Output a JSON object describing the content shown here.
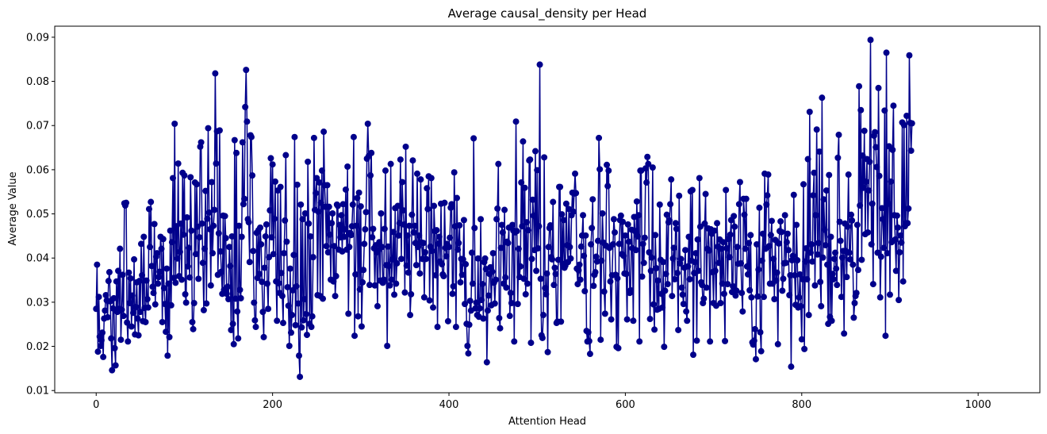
{
  "chart_data": {
    "type": "line",
    "title": "Average causal_density per Head",
    "xlabel": "Attention Head",
    "ylabel": "Average Value",
    "xlim": [
      -47,
      1070
    ],
    "ylim": [
      0.0095,
      0.0925
    ],
    "xticks": [
      0,
      200,
      400,
      600,
      800,
      1000
    ],
    "xtick_labels": [
      "0",
      "200",
      "400",
      "600",
      "800",
      "1000"
    ],
    "yticks": [
      0.01,
      0.02,
      0.03,
      0.04,
      0.05,
      0.06,
      0.07,
      0.08,
      0.09
    ],
    "ytick_labels": [
      "0.01",
      "0.02",
      "0.03",
      "0.04",
      "0.05",
      "0.06",
      "0.07",
      "0.08",
      "0.09"
    ],
    "grid": false,
    "legend": "none",
    "color": "#00008B",
    "marker": "circle",
    "series": [
      {
        "x_start": 0,
        "x_step": 1,
        "values": [
          0.0285,
          0.0385,
          0.0188,
          0.0312,
          0.0222,
          0.0201,
          0.0214,
          0.0231,
          0.0176,
          0.0263,
          0.0281,
          0.0316,
          0.0304,
          0.0266,
          0.0348,
          0.0368,
          0.0302,
          0.0218,
          0.0146,
          0.0286,
          0.0309,
          0.0196,
          0.0157,
          0.0347,
          0.0278,
          0.0371,
          0.0285,
          0.0421,
          0.0215,
          0.0283,
          0.0362,
          0.0269,
          0.0524,
          0.0519,
          0.0525,
          0.0254,
          0.0211,
          0.0367,
          0.0298,
          0.0354,
          0.0245,
          0.0315,
          0.0276,
          0.0397,
          0.0227,
          0.0289,
          0.0345,
          0.0263,
          0.0225,
          0.0348,
          0.0278,
          0.0432,
          0.0361,
          0.0257,
          0.0448,
          0.0287,
          0.0255,
          0.0349,
          0.0307,
          0.0288,
          0.0511,
          0.0425,
          0.0527,
          0.0382,
          0.0335,
          0.0321,
          0.0477,
          0.0295,
          0.0403,
          0.0411,
          0.0342,
          0.0357,
          0.0369,
          0.0448,
          0.0421,
          0.0255,
          0.0443,
          0.0332,
          0.0296,
          0.0233,
          0.0376,
          0.0179,
          0.0342,
          0.0221,
          0.0462,
          0.0293,
          0.0436,
          0.0581,
          0.0355,
          0.0704,
          0.0344,
          0.0472,
          0.0399,
          0.0614,
          0.0359,
          0.0414,
          0.0478,
          0.0351,
          0.0593,
          0.0453,
          0.0587,
          0.0318,
          0.0299,
          0.0492,
          0.0381,
          0.0423,
          0.0356,
          0.0583,
          0.0462,
          0.0255,
          0.0239,
          0.0298,
          0.0571,
          0.0409,
          0.0567,
          0.0471,
          0.0353,
          0.0447,
          0.0652,
          0.0662,
          0.0478,
          0.0389,
          0.0282,
          0.0421,
          0.0552,
          0.0297,
          0.0489,
          0.0694,
          0.0503,
          0.0465,
          0.0338,
          0.0572,
          0.0411,
          0.0473,
          0.0509,
          0.0818,
          0.0614,
          0.0687,
          0.0362,
          0.0456,
          0.0689,
          0.0415,
          0.0369,
          0.0319,
          0.0496,
          0.0328,
          0.0495,
          0.0445,
          0.0319,
          0.0335,
          0.0307,
          0.0425,
          0.0382,
          0.0237,
          0.0449,
          0.0251,
          0.0205,
          0.0667,
          0.0308,
          0.0638,
          0.0279,
          0.0218,
          0.0473,
          0.0328,
          0.0309,
          0.0448,
          0.0662,
          0.0522,
          0.0534,
          0.0742,
          0.0826,
          0.0709,
          0.0488,
          0.0481,
          0.0391,
          0.0678,
          0.0674,
          0.0587,
          0.0416,
          0.0299,
          0.0259,
          0.0244,
          0.0457,
          0.0355,
          0.0463,
          0.0364,
          0.0469,
          0.0431,
          0.0346,
          0.0278,
          0.0221,
          0.0378,
          0.0449,
          0.0476,
          0.0342,
          0.0285,
          0.0402,
          0.0508,
          0.0626,
          0.0447,
          0.0612,
          0.0409,
          0.0489,
          0.0573,
          0.0347,
          0.0258,
          0.0553,
          0.0343,
          0.0321,
          0.0561,
          0.0366,
          0.0314,
          0.0253,
          0.0411,
          0.0485,
          0.0633,
          0.0437,
          0.0334,
          0.0292,
          0.0201,
          0.0376,
          0.0231,
          0.0271,
          0.0327,
          0.0407,
          0.0674,
          0.0248,
          0.0336,
          0.0566,
          0.0297,
          0.0179,
          0.0131,
          0.0521,
          0.0243,
          0.0488,
          0.0259,
          0.0307,
          0.0501,
          0.0273,
          0.0226,
          0.0618,
          0.0478,
          0.0251,
          0.0449,
          0.0244,
          0.0268,
          0.0402,
          0.0672,
          0.0509,
          0.0547,
          0.0581,
          0.0316,
          0.0505,
          0.0571,
          0.0314,
          0.0525,
          0.0598,
          0.0308,
          0.0686,
          0.0565,
          0.0516,
          0.0427,
          0.0565,
          0.0413,
          0.0516,
          0.0453,
          0.0351,
          0.0479,
          0.0501,
          0.0347,
          0.0427,
          0.0314,
          0.0359,
          0.0521,
          0.0518,
          0.0419,
          0.0475,
          0.0447,
          0.0497,
          0.0415,
          0.0522,
          0.0448,
          0.0465,
          0.0555,
          0.0419,
          0.0607,
          0.0274,
          0.0425,
          0.0457,
          0.0452,
          0.0472,
          0.0521,
          0.0674,
          0.0224,
          0.0363,
          0.0473,
          0.0536,
          0.0268,
          0.0548,
          0.0329,
          0.0517,
          0.0245,
          0.0345,
          0.0373,
          0.0432,
          0.0465,
          0.0504,
          0.0625,
          0.0704,
          0.0631,
          0.0339,
          0.0587,
          0.0638,
          0.0447,
          0.0466,
          0.0422,
          0.0338,
          0.0429,
          0.0413,
          0.0291,
          0.0417,
          0.0436,
          0.0349,
          0.0501,
          0.0425,
          0.0344,
          0.0351,
          0.0466,
          0.0598,
          0.0384,
          0.0201,
          0.0426,
          0.0382,
          0.0338,
          0.0613,
          0.0351,
          0.0397,
          0.0459,
          0.0317,
          0.0513,
          0.0342,
          0.0388,
          0.0518,
          0.0451,
          0.0479,
          0.0623,
          0.0398,
          0.0572,
          0.0508,
          0.0476,
          0.0322,
          0.0652,
          0.0383,
          0.0451,
          0.0367,
          0.0473,
          0.0271,
          0.0318,
          0.0498,
          0.0621,
          0.0458,
          0.0473,
          0.0434,
          0.0384,
          0.0591,
          0.0425,
          0.0451,
          0.0365,
          0.0578,
          0.0435,
          0.0398,
          0.0434,
          0.0311,
          0.0413,
          0.0398,
          0.0558,
          0.0511,
          0.0585,
          0.0304,
          0.0426,
          0.0581,
          0.0416,
          0.0288,
          0.0518,
          0.0461,
          0.0361,
          0.0463,
          0.0244,
          0.0433,
          0.0448,
          0.0392,
          0.0523,
          0.0386,
          0.0363,
          0.0359,
          0.0525,
          0.0423,
          0.0404,
          0.0432,
          0.0257,
          0.0425,
          0.0446,
          0.0514,
          0.0522,
          0.0319,
          0.0336,
          0.0594,
          0.0472,
          0.0244,
          0.0536,
          0.0419,
          0.0434,
          0.0474,
          0.0345,
          0.0398,
          0.0362,
          0.0397,
          0.0486,
          0.0296,
          0.0386,
          0.0251,
          0.0201,
          0.0184,
          0.0249,
          0.0303,
          0.0281,
          0.0412,
          0.0342,
          0.0671,
          0.0468,
          0.0286,
          0.0299,
          0.0271,
          0.0399,
          0.0267,
          0.0286,
          0.0488,
          0.0305,
          0.0341,
          0.0263,
          0.0391,
          0.0399,
          0.0375,
          0.0164,
          0.0281,
          0.0315,
          0.0364,
          0.0379,
          0.0293,
          0.0369,
          0.0411,
          0.0344,
          0.0297,
          0.0351,
          0.0488,
          0.0512,
          0.0613,
          0.0264,
          0.0241,
          0.0423,
          0.0475,
          0.0458,
          0.0342,
          0.0509,
          0.0356,
          0.0333,
          0.0437,
          0.0434,
          0.0469,
          0.0269,
          0.0321,
          0.0298,
          0.0475,
          0.0462,
          0.0211,
          0.0458,
          0.0709,
          0.0461,
          0.0296,
          0.0421,
          0.0357,
          0.0381,
          0.0571,
          0.0472,
          0.0664,
          0.0353,
          0.0559,
          0.0318,
          0.0481,
          0.0342,
          0.0463,
          0.0621,
          0.0623,
          0.0208,
          0.0398,
          0.0532,
          0.0496,
          0.0418,
          0.0642,
          0.0371,
          0.0599,
          0.0422,
          0.0472,
          0.0838,
          0.0353,
          0.0225,
          0.0219,
          0.0271,
          0.0628,
          0.0332,
          0.0318,
          0.0365,
          0.0187,
          0.0425,
          0.0468,
          0.0474,
          0.0402,
          0.0397,
          0.0527,
          0.0339,
          0.0378,
          0.0364,
          0.0253,
          0.0256,
          0.0396,
          0.0561,
          0.0561,
          0.0256,
          0.0499,
          0.0387,
          0.0486,
          0.0378,
          0.0383,
          0.0523,
          0.0429,
          0.0391,
          0.0511,
          0.0425,
          0.0399,
          0.0497,
          0.0548,
          0.0505,
          0.0546,
          0.0591,
          0.0547,
          0.0376,
          0.0341,
          0.0372,
          0.0385,
          0.0351,
          0.0426,
          0.0451,
          0.0497,
          0.0405,
          0.0325,
          0.0451,
          0.0235,
          0.0211,
          0.0232,
          0.0212,
          0.0183,
          0.0431,
          0.0468,
          0.0533,
          0.0337,
          0.0362,
          0.0368,
          0.0403,
          0.0392,
          0.0439,
          0.0672,
          0.0601,
          0.0215,
          0.0394,
          0.0501,
          0.0435,
          0.0324,
          0.0274,
          0.0428,
          0.0611,
          0.0563,
          0.0598,
          0.0423,
          0.0347,
          0.0261,
          0.0361,
          0.0431,
          0.0488,
          0.0458,
          0.0362,
          0.0199,
          0.0354,
          0.0196,
          0.0432,
          0.0486,
          0.0496,
          0.0409,
          0.0482,
          0.0405,
          0.0365,
          0.0451,
          0.0364,
          0.0261,
          0.0476,
          0.0437,
          0.0321,
          0.0327,
          0.0464,
          0.0422,
          0.0258,
          0.0493,
          0.0461,
          0.0418,
          0.0528,
          0.0449,
          0.0497,
          0.0211,
          0.0598,
          0.0598,
          0.0358,
          0.0432,
          0.0389,
          0.0446,
          0.0603,
          0.0571,
          0.0629,
          0.0613,
          0.0413,
          0.0262,
          0.0371,
          0.0401,
          0.0605,
          0.0295,
          0.0238,
          0.0452,
          0.0377,
          0.0283,
          0.0349,
          0.0285,
          0.0521,
          0.0396,
          0.0319,
          0.0288,
          0.0391,
          0.0199,
          0.0326,
          0.0364,
          0.0498,
          0.0341,
          0.0481,
          0.0485,
          0.0522,
          0.0578,
          0.0314,
          0.0399,
          0.0423,
          0.0352,
          0.0479,
          0.0466,
          0.0366,
          0.0237,
          0.0541,
          0.0388,
          0.0398,
          0.0333,
          0.0317,
          0.0296,
          0.0378,
          0.0418,
          0.0279,
          0.0258,
          0.0381,
          0.0448,
          0.0352,
          0.0551,
          0.0394,
          0.0554,
          0.0181,
          0.0366,
          0.0391,
          0.0411,
          0.0213,
          0.0442,
          0.0371,
          0.0581,
          0.0471,
          0.0345,
          0.0339,
          0.0298,
          0.0308,
          0.0478,
          0.0545,
          0.0333,
          0.0421,
          0.0467,
          0.0417,
          0.0211,
          0.0465,
          0.0455,
          0.0368,
          0.0298,
          0.0462,
          0.0371,
          0.0292,
          0.0479,
          0.0426,
          0.0389,
          0.0442,
          0.0298,
          0.0421,
          0.0342,
          0.0436,
          0.0319,
          0.0212,
          0.0554,
          0.0422,
          0.0341,
          0.0443,
          0.0402,
          0.0453,
          0.0486,
          0.0323,
          0.0336,
          0.0495,
          0.0471,
          0.0315,
          0.0326,
          0.0425,
          0.0387,
          0.0522,
          0.0572,
          0.0388,
          0.0321,
          0.0279,
          0.0534,
          0.0498,
          0.0421,
          0.0534,
          0.0381,
          0.0363,
          0.0434,
          0.0327,
          0.0452,
          0.0311,
          0.0209,
          0.0204,
          0.0213,
          0.0239,
          0.0171,
          0.0431,
          0.0313,
          0.0374,
          0.0514,
          0.0232,
          0.0189,
          0.0394,
          0.0455,
          0.0312,
          0.0591,
          0.0421,
          0.0521,
          0.0542,
          0.0589,
          0.0427,
          0.0342,
          0.0452,
          0.0484,
          0.0342,
          0.0398,
          0.0307,
          0.0441,
          0.0349,
          0.0367,
          0.0205,
          0.0433,
          0.0461,
          0.0483,
          0.0459,
          0.0326,
          0.0353,
          0.0388,
          0.0497,
          0.0389,
          0.0436,
          0.0455,
          0.0418,
          0.0316,
          0.0361,
          0.0154,
          0.0395,
          0.0405,
          0.0543,
          0.0361,
          0.0294,
          0.0475,
          0.0395,
          0.0288,
          0.0311,
          0.0363,
          0.0291,
          0.0216,
          0.0352,
          0.0567,
          0.0194,
          0.0392,
          0.0422,
          0.0352,
          0.0624,
          0.0271,
          0.0731,
          0.0412,
          0.0431,
          0.0392,
          0.0542,
          0.0593,
          0.0338,
          0.0497,
          0.0691,
          0.0408,
          0.0434,
          0.0641,
          0.0346,
          0.0291,
          0.0763,
          0.0401,
          0.0533,
          0.0464,
          0.0429,
          0.0553,
          0.0385,
          0.0251,
          0.0588,
          0.0267,
          0.0448,
          0.0258,
          0.0364,
          0.0352,
          0.0398,
          0.0412,
          0.0376,
          0.0339,
          0.0627,
          0.0679,
          0.0482,
          0.0439,
          0.0312,
          0.0401,
          0.0416,
          0.0229,
          0.0478,
          0.0416,
          0.0357,
          0.0471,
          0.0589,
          0.0412,
          0.0397,
          0.0498,
          0.0485,
          0.0385,
          0.0265,
          0.0298,
          0.0314,
          0.0321,
          0.0475,
          0.0373,
          0.0789,
          0.0519,
          0.0735,
          0.0396,
          0.0632,
          0.0559,
          0.0688,
          0.0454,
          0.0573,
          0.0624,
          0.0458,
          0.0553,
          0.0618,
          0.0894,
          0.0431,
          0.0523,
          0.0341,
          0.0677,
          0.0685,
          0.0651,
          0.0606,
          0.0412,
          0.0785,
          0.0586,
          0.0311,
          0.0403,
          0.0513,
          0.0488,
          0.0423,
          0.0734,
          0.0224,
          0.0865,
          0.0411,
          0.0523,
          0.0653,
          0.0317,
          0.0573,
          0.0436,
          0.0645,
          0.0745,
          0.0497,
          0.0442,
          0.0371,
          0.0496,
          0.0469,
          0.0305,
          0.0413,
          0.0451,
          0.0435,
          0.0707,
          0.0347,
          0.0701,
          0.0472,
          0.0479,
          0.0722,
          0.0479,
          0.0512,
          0.0859,
          0.0706,
          0.0643,
          0.0705
        ]
      }
    ]
  }
}
